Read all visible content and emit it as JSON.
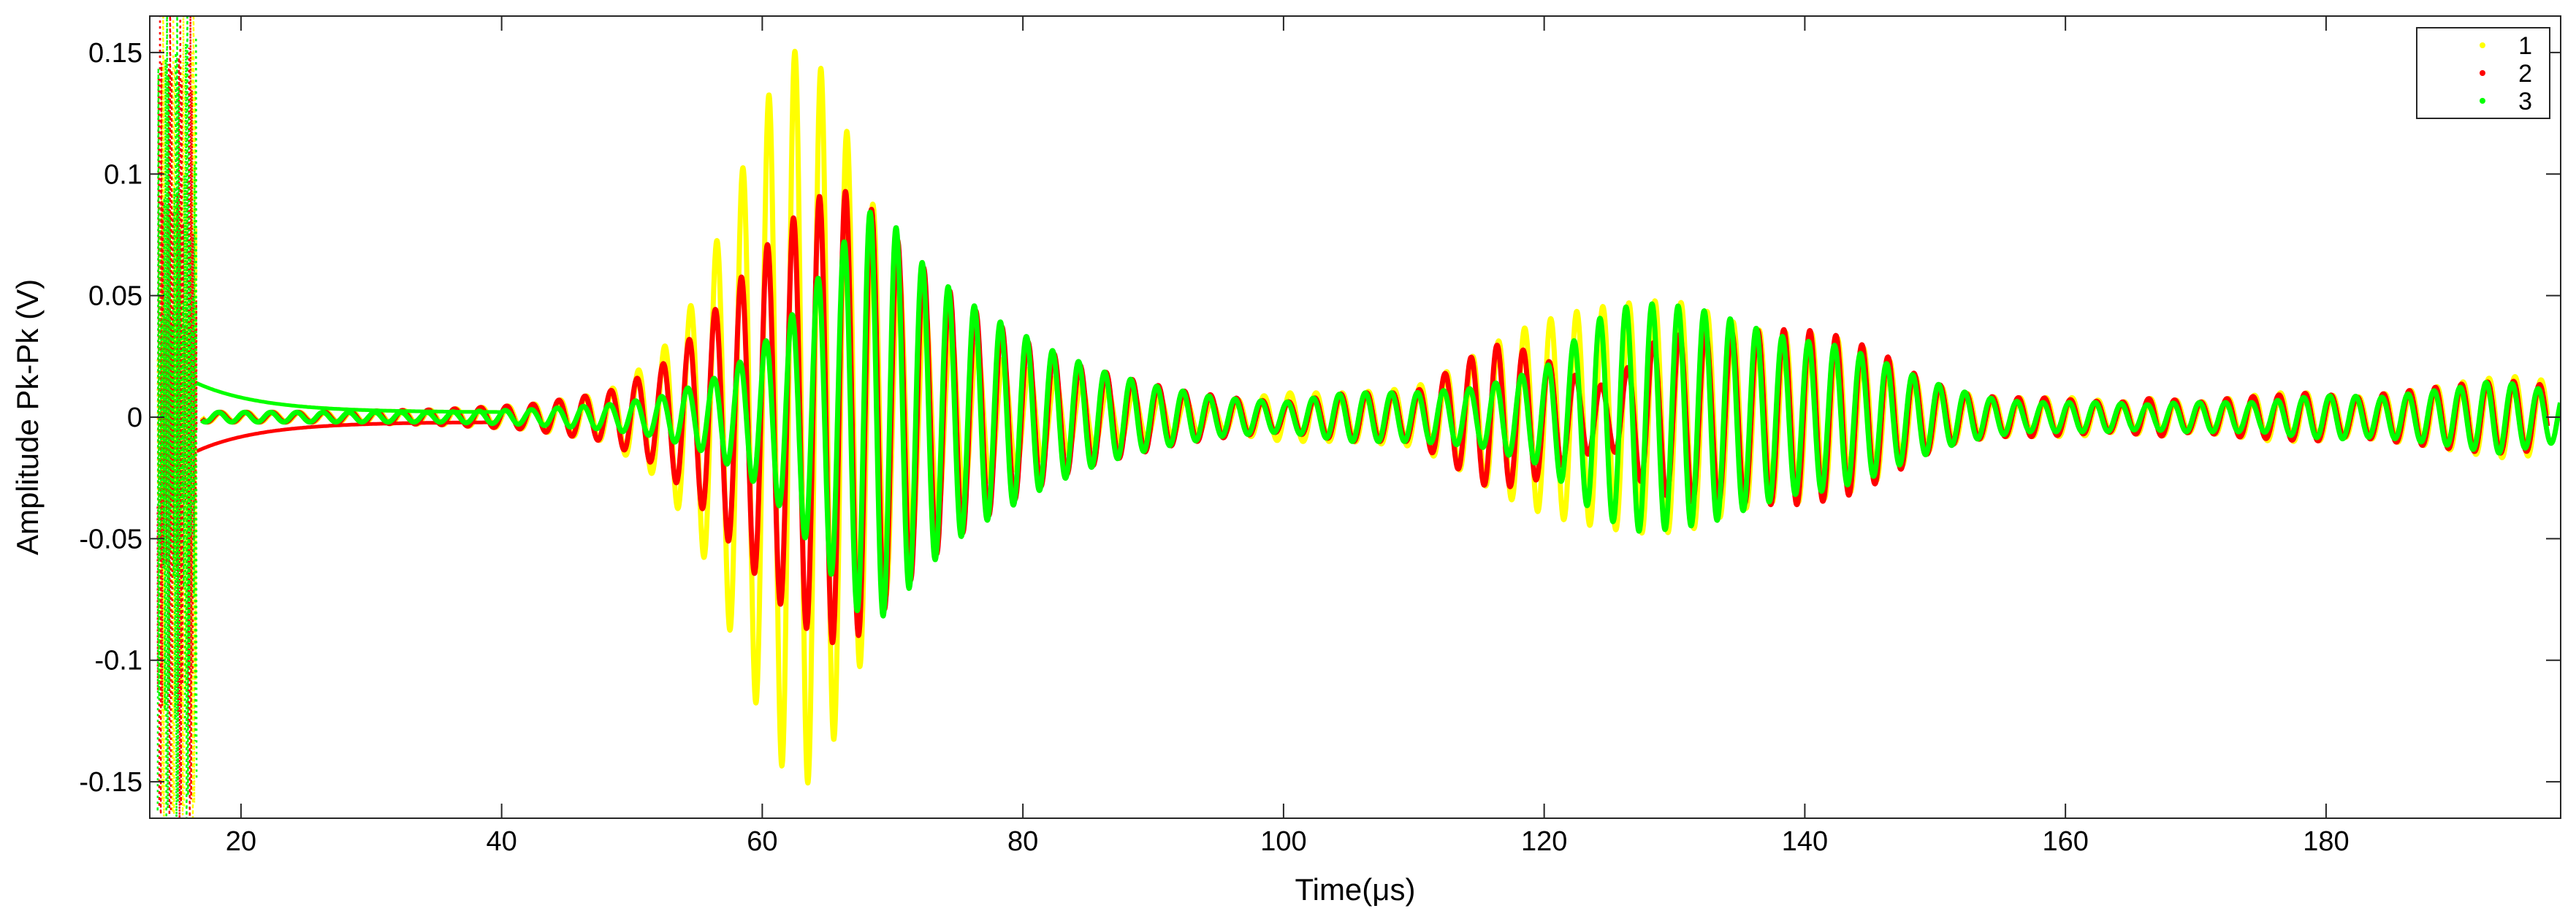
{
  "chart_data": {
    "type": "scatter",
    "title": "",
    "xlabel": "Time(μs)",
    "ylabel": "Amplitude Pk-Pk (V)",
    "xlim": [
      13,
      198
    ],
    "ylim": [
      -0.165,
      0.165
    ],
    "x_ticks": [
      20,
      40,
      60,
      80,
      100,
      120,
      140,
      160,
      180
    ],
    "x_tick_labels": [
      "20",
      "40",
      "60",
      "80",
      "100",
      "120",
      "140",
      "160",
      "180"
    ],
    "y_ticks": [
      0.15,
      0.1,
      0.05,
      0,
      -0.05,
      -0.1,
      -0.15
    ],
    "y_tick_labels": [
      "0.15",
      "0.1",
      "0.05",
      "0",
      "-0.05",
      "-0.1",
      "-0.15"
    ],
    "grid": false,
    "legend_position": "top-right",
    "series": [
      {
        "name": "1",
        "color": "#ffff00",
        "envelope": {
          "t": [
            17,
            25,
            35,
            42,
            48,
            52,
            55,
            57,
            59,
            61,
            63,
            65,
            67,
            69,
            71,
            74,
            78,
            82,
            86,
            90,
            95,
            100,
            105,
            110,
            113,
            116,
            119,
            122,
            125,
            128,
            131,
            134,
            137,
            140,
            143,
            146,
            149,
            152,
            155,
            158,
            161,
            164,
            167,
            170,
            173,
            176,
            179,
            182,
            185,
            188,
            191,
            194,
            197
          ],
          "a": [
            0.002,
            0.002,
            0.003,
            0.005,
            0.01,
            0.025,
            0.05,
            0.08,
            0.11,
            0.14,
            0.154,
            0.14,
            0.11,
            0.08,
            0.055,
            0.038,
            0.025,
            0.017,
            0.012,
            0.009,
            0.006,
            0.01,
            0.01,
            0.012,
            0.02,
            0.03,
            0.038,
            0.043,
            0.046,
            0.048,
            0.047,
            0.04,
            0.035,
            0.035,
            0.032,
            0.025,
            0.015,
            0.01,
            0.008,
            0.008,
            0.008,
            0.006,
            0.008,
            0.006,
            0.008,
            0.01,
            0.01,
            0.008,
            0.01,
            0.012,
            0.015,
            0.017,
            0.015
          ]
        }
      },
      {
        "name": "2",
        "color": "#ff0000",
        "envelope": {
          "t": [
            17,
            25,
            35,
            42,
            48,
            52,
            55,
            58,
            61,
            64,
            66,
            68,
            70,
            73,
            76,
            80,
            84,
            88,
            92,
            96,
            100,
            105,
            110,
            113,
            116,
            119,
            122,
            125,
            128,
            131,
            134,
            137,
            140,
            143,
            146,
            149,
            152,
            155,
            158,
            161,
            164,
            167,
            170,
            173,
            176,
            179,
            182,
            185,
            188,
            191,
            194,
            197
          ],
          "a": [
            0.002,
            0.002,
            0.003,
            0.005,
            0.01,
            0.02,
            0.035,
            0.055,
            0.075,
            0.09,
            0.094,
            0.088,
            0.075,
            0.058,
            0.045,
            0.032,
            0.022,
            0.016,
            0.011,
            0.008,
            0.006,
            0.01,
            0.01,
            0.02,
            0.03,
            0.027,
            0.018,
            0.012,
            0.03,
            0.035,
            0.035,
            0.036,
            0.036,
            0.033,
            0.026,
            0.016,
            0.01,
            0.008,
            0.008,
            0.007,
            0.006,
            0.008,
            0.006,
            0.008,
            0.009,
            0.01,
            0.008,
            0.01,
            0.012,
            0.014,
            0.015,
            0.013
          ]
        }
      },
      {
        "name": "3",
        "color": "#00ff00",
        "envelope": {
          "t": [
            17,
            25,
            35,
            42,
            48,
            52,
            56,
            59,
            62,
            64,
            66,
            68,
            70,
            72,
            75,
            78,
            82,
            86,
            90,
            95,
            100,
            105,
            110,
            115,
            120,
            124,
            127,
            130,
            133,
            136,
            139,
            142,
            145,
            148,
            151,
            154,
            157,
            160,
            163,
            166,
            169,
            172,
            175,
            178,
            181,
            184,
            187,
            190,
            193,
            196,
            198
          ],
          "a": [
            0.002,
            0.002,
            0.002,
            0.003,
            0.005,
            0.008,
            0.015,
            0.025,
            0.04,
            0.055,
            0.07,
            0.085,
            0.08,
            0.065,
            0.05,
            0.04,
            0.028,
            0.019,
            0.013,
            0.008,
            0.006,
            0.01,
            0.01,
            0.012,
            0.02,
            0.04,
            0.047,
            0.046,
            0.043,
            0.037,
            0.032,
            0.03,
            0.025,
            0.018,
            0.012,
            0.008,
            0.006,
            0.006,
            0.006,
            0.005,
            0.006,
            0.006,
            0.006,
            0.008,
            0.009,
            0.008,
            0.01,
            0.012,
            0.015,
            0.012,
            0.01
          ]
        }
      }
    ]
  }
}
